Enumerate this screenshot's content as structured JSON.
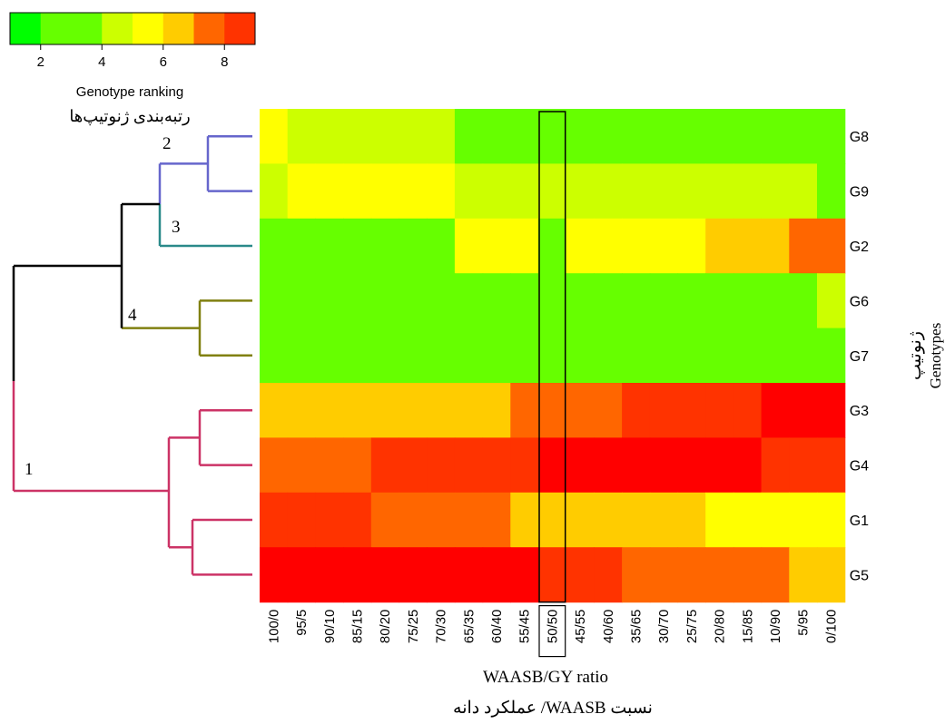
{
  "chart_data": {
    "type": "heatmap",
    "x": [
      "100/0",
      "95/5",
      "90/10",
      "85/15",
      "80/20",
      "75/25",
      "70/30",
      "65/35",
      "60/40",
      "55/45",
      "50/50",
      "45/55",
      "40/60",
      "35/65",
      "30/70",
      "25/75",
      "20/80",
      "15/85",
      "10/90",
      "5/95",
      "0/100"
    ],
    "y": [
      "G8",
      "G9",
      "G2",
      "G6",
      "G7",
      "G3",
      "G4",
      "G1",
      "G5"
    ],
    "values": [
      [
        5,
        4,
        4,
        4,
        4,
        4,
        4,
        2,
        2,
        2,
        2,
        2,
        2,
        2,
        2,
        2,
        2,
        2,
        2,
        2,
        2
      ],
      [
        4,
        5,
        5,
        5,
        5,
        5,
        5,
        4,
        4,
        4,
        4,
        4,
        4,
        4,
        4,
        4,
        4,
        4,
        4,
        4,
        2
      ],
      [
        3,
        3,
        3,
        3,
        3,
        3,
        3,
        5,
        5,
        5,
        3,
        5,
        5,
        5,
        5,
        5,
        6,
        6,
        6,
        7,
        7
      ],
      [
        3,
        3,
        3,
        3,
        3,
        3,
        3,
        3,
        3,
        3,
        3,
        3,
        3,
        3,
        3,
        3,
        3,
        3,
        3,
        3,
        4
      ],
      [
        2,
        2,
        2,
        2,
        2,
        2,
        2,
        2,
        2,
        2,
        2,
        2,
        2,
        2,
        2,
        2,
        2,
        2,
        2,
        2,
        2
      ],
      [
        6,
        6,
        6,
        6,
        6,
        6,
        6,
        6,
        6,
        7,
        7,
        7,
        7,
        8,
        8,
        8,
        8,
        8,
        9,
        9,
        9
      ],
      [
        7,
        7,
        7,
        7,
        8,
        8,
        8,
        8,
        8,
        8,
        9,
        9,
        9,
        9,
        9,
        9,
        9,
        9,
        8,
        8,
        8
      ],
      [
        8,
        8,
        8,
        8,
        7,
        7,
        7,
        7,
        7,
        6,
        6,
        6,
        6,
        6,
        6,
        6,
        5,
        5,
        5,
        5,
        5
      ],
      [
        9,
        9,
        9,
        9,
        9,
        9,
        9,
        9,
        9,
        9,
        8,
        8,
        8,
        7,
        7,
        7,
        7,
        7,
        7,
        6,
        6
      ]
    ],
    "highlight_column": "50/50",
    "xlabel": "WAASB/GY ratio",
    "xlabel_fa": "نسبت WAASB/ عملکرد دانه",
    "ylabel": "Genotypes",
    "ylabel_fa": "ژنوتیپ",
    "colorbar": {
      "title": "Genotype ranking",
      "title_fa": "رتبه‌بندی ژنوتیپ‌ها",
      "ticks": [
        "2",
        "4",
        "6",
        "8"
      ],
      "range": [
        1,
        9
      ],
      "colors": [
        "#00ff00",
        "#66ff00",
        "#66ff00",
        "#ccff00",
        "#ffff00",
        "#ffcc00",
        "#ff6600",
        "#ff3300",
        "#ff0000"
      ]
    },
    "dendrogram": {
      "cluster_labels": [
        "1",
        "2",
        "3",
        "4"
      ],
      "colors": {
        "black": "#000000",
        "blue": "#6666cc",
        "teal": "#2a8a8a",
        "olive": "#808010",
        "pink": "#cc3366"
      }
    }
  }
}
